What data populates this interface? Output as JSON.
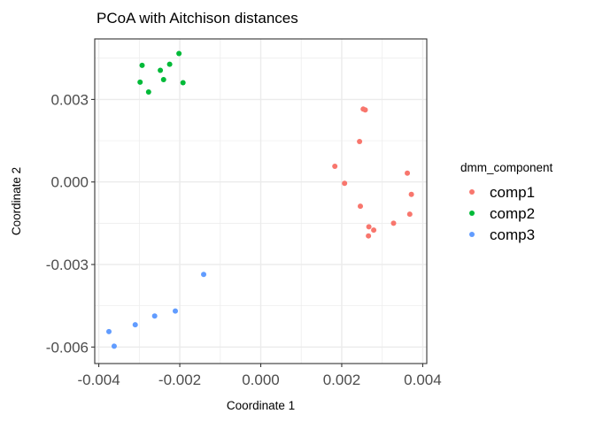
{
  "chart_data": {
    "type": "scatter",
    "title": "PCoA with Aitchison distances",
    "xlabel": "Coordinate 1",
    "ylabel": "Coordinate 2",
    "xlim": [
      -0.0041,
      0.0041
    ],
    "ylim": [
      -0.0066,
      0.0052
    ],
    "x_ticks": [
      -0.004,
      -0.002,
      0.0,
      0.002,
      0.004
    ],
    "x_tick_labels": [
      "-0.004",
      "-0.002",
      "0.000",
      "0.002",
      "0.004"
    ],
    "y_ticks": [
      -0.006,
      -0.003,
      0.0,
      0.003
    ],
    "y_tick_labels": [
      "-0.006",
      "-0.003",
      "0.000",
      "0.003"
    ],
    "x_minor_ticks": [
      -0.003,
      -0.001,
      0.001,
      0.003
    ],
    "y_minor_ticks": [
      -0.0045,
      -0.0015,
      0.0015,
      0.0045
    ],
    "grid": true,
    "legend": {
      "title": "dmm_component",
      "position": "right"
    },
    "series": [
      {
        "name": "comp1",
        "color": "#F8766D",
        "points": [
          [
            0.00253,
            0.00265
          ],
          [
            0.00258,
            0.00262
          ],
          [
            0.00244,
            0.00147
          ],
          [
            0.00183,
            0.00057
          ],
          [
            0.00207,
            -5e-05
          ],
          [
            0.00362,
            0.00032
          ],
          [
            0.00372,
            -0.00045
          ],
          [
            0.00246,
            -0.00088
          ],
          [
            0.00368,
            -0.00117
          ],
          [
            0.00328,
            -0.0015
          ],
          [
            0.00267,
            -0.00163
          ],
          [
            0.00279,
            -0.00175
          ],
          [
            0.00266,
            -0.00196
          ]
        ]
      },
      {
        "name": "comp2",
        "color": "#00BA38",
        "points": [
          [
            -0.00202,
            0.00467
          ],
          [
            -0.00225,
            0.00428
          ],
          [
            -0.00293,
            0.00424
          ],
          [
            -0.00248,
            0.00406
          ],
          [
            -0.0024,
            0.00372
          ],
          [
            -0.00298,
            0.00363
          ],
          [
            -0.00192,
            0.00361
          ],
          [
            -0.00277,
            0.00327
          ]
        ]
      },
      {
        "name": "comp3",
        "color": "#619CFF",
        "points": [
          [
            -0.00141,
            -0.00336
          ],
          [
            -0.00211,
            -0.00469
          ],
          [
            -0.00262,
            -0.00487
          ],
          [
            -0.0031,
            -0.00519
          ],
          [
            -0.00375,
            -0.00544
          ],
          [
            -0.00362,
            -0.00597
          ]
        ]
      }
    ]
  }
}
